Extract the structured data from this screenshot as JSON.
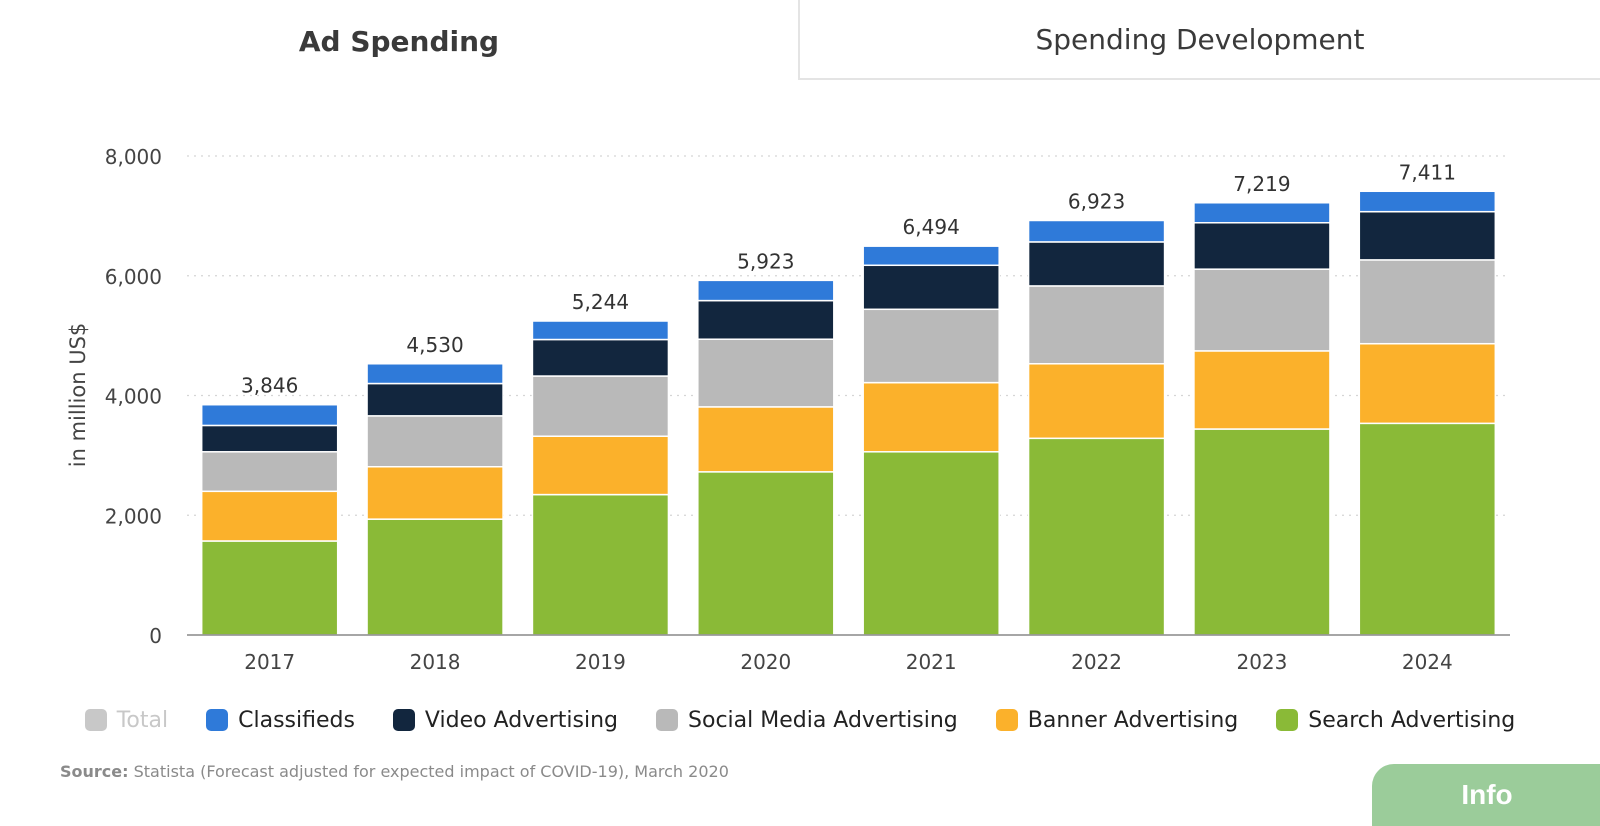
{
  "tabs": [
    {
      "label": "Ad Spending",
      "active": true
    },
    {
      "label": "Spending Development",
      "active": false
    }
  ],
  "chart_data": {
    "type": "bar",
    "stacked": true,
    "ylabel": "in million US$",
    "ylim": [
      0,
      8000
    ],
    "yticks": [
      0,
      2000,
      4000,
      6000,
      8000
    ],
    "grid": true,
    "categories": [
      "2017",
      "2018",
      "2019",
      "2020",
      "2021",
      "2022",
      "2023",
      "2024"
    ],
    "totals": [
      3846,
      4530,
      5244,
      5923,
      6494,
      6923,
      7219,
      7411
    ],
    "series": [
      {
        "name": "Search Advertising",
        "color": "#8aba37",
        "values": [
          1570,
          1935,
          2345,
          2725,
          3060,
          3285,
          3440,
          3535
        ]
      },
      {
        "name": "Banner Advertising",
        "color": "#fbb12b",
        "values": [
          830,
          875,
          975,
          1085,
          1155,
          1245,
          1305,
          1330
        ]
      },
      {
        "name": "Social Media Advertising",
        "color": "#b9b9b9",
        "values": [
          660,
          850,
          1005,
          1130,
          1225,
          1300,
          1365,
          1400
        ]
      },
      {
        "name": "Video Advertising",
        "color": "#12263e",
        "values": [
          440,
          540,
          610,
          645,
          735,
          735,
          775,
          805
        ]
      },
      {
        "name": "Classifieds",
        "color": "#2f7ad9",
        "values": [
          346,
          330,
          309,
          338,
          319,
          358,
          334,
          341
        ]
      }
    ]
  },
  "legend": [
    {
      "label": "Total",
      "color": "#c8c8c8",
      "disabled": true
    },
    {
      "label": "Classifieds",
      "color": "#2f7ad9"
    },
    {
      "label": "Video Advertising",
      "color": "#12263e"
    },
    {
      "label": "Social Media Advertising",
      "color": "#b9b9b9"
    },
    {
      "label": "Banner Advertising",
      "color": "#fbb12b"
    },
    {
      "label": "Search Advertising",
      "color": "#8aba37"
    }
  ],
  "source": {
    "label": "Source:",
    "text": "Statista (Forecast adjusted for expected impact of COVID-19), March 2020"
  },
  "info_button": "Info"
}
